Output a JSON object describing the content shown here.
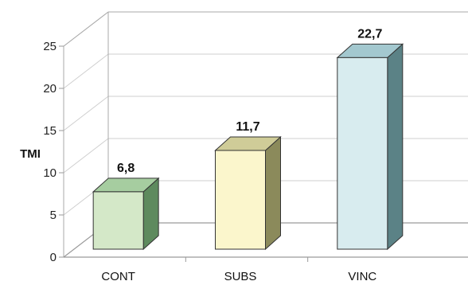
{
  "chart_data": {
    "type": "bar",
    "categories": [
      "CONT",
      "SUBS",
      "VINC"
    ],
    "values": [
      6.8,
      11.7,
      22.7
    ],
    "value_labels": [
      "6,8",
      "11,7",
      "22,7"
    ],
    "title": "",
    "xlabel": "",
    "ylabel": "TMI",
    "ylim": [
      0,
      25
    ],
    "yticks": [
      "0",
      "5",
      "10",
      "15",
      "20",
      "25"
    ],
    "grid": true,
    "style": "3d-columns",
    "colors": {
      "front": [
        "#d4e8c8",
        "#fbf6cc",
        "#d8ecef"
      ],
      "top": [
        "#a6cda0",
        "#cfcc98",
        "#a3c8cf"
      ],
      "side": [
        "#5e8a5e",
        "#8b8a5b",
        "#5b8286"
      ],
      "wall_lines": "#a9a9a9",
      "grid": "#cfcfcf",
      "floor": "#9a9a9a",
      "outline": "#333333"
    }
  }
}
